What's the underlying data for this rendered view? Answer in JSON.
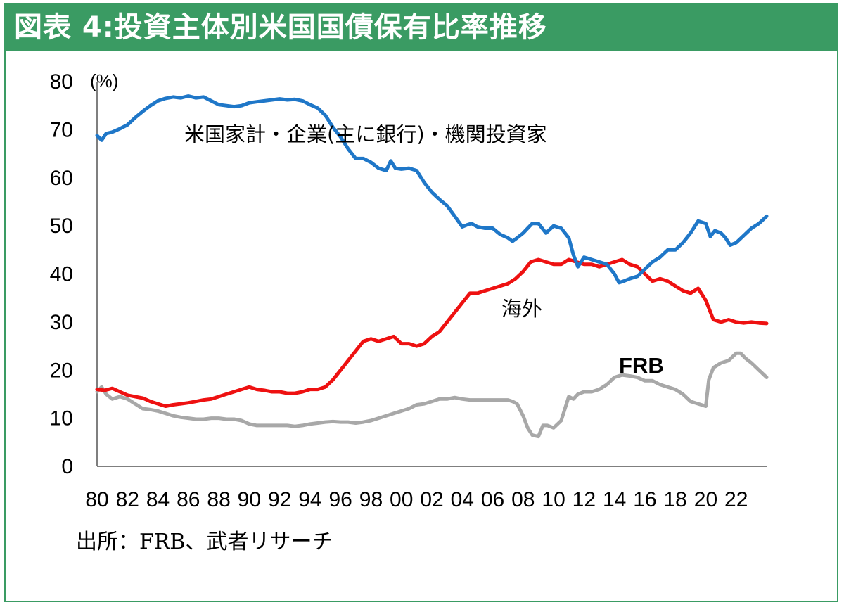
{
  "title": "図表 4:投資主体別米国国債保有比率推移",
  "source": "出所：FRB、武者リサーチ",
  "chart_data": {
    "type": "line",
    "unit": "(%)",
    "ylim": [
      0,
      80
    ],
    "yticks": [
      0,
      10,
      20,
      30,
      40,
      50,
      60,
      70,
      80
    ],
    "xlim": [
      1980,
      2024
    ],
    "xtick_labels": [
      "80",
      "82",
      "84",
      "86",
      "88",
      "90",
      "92",
      "94",
      "96",
      "98",
      "00",
      "02",
      "04",
      "06",
      "08",
      "10",
      "12",
      "14",
      "16",
      "18",
      "20",
      "22"
    ],
    "series": [
      {
        "name": "米国家計・企業(主に銀行)・機関投資家",
        "color": "#1f77c8",
        "x": [
          1980.0,
          1980.3,
          1980.6,
          1981.0,
          1981.5,
          1982.0,
          1982.5,
          1983.0,
          1983.5,
          1984.0,
          1984.5,
          1985.0,
          1985.5,
          1986.0,
          1986.5,
          1987.0,
          1987.5,
          1988.0,
          1988.5,
          1989.0,
          1989.5,
          1990.0,
          1990.5,
          1991.0,
          1991.5,
          1992.0,
          1992.5,
          1993.0,
          1993.5,
          1994.0,
          1994.5,
          1995.0,
          1995.5,
          1996.0,
          1996.5,
          1997.0,
          1997.5,
          1998.0,
          1998.5,
          1999.0,
          1999.3,
          1999.6,
          2000.0,
          2000.5,
          2001.0,
          2001.5,
          2002.0,
          2002.5,
          2003.0,
          2003.5,
          2004.0,
          2004.3,
          2004.6,
          2005.0,
          2005.5,
          2006.0,
          2006.5,
          2007.0,
          2007.3,
          2007.6,
          2008.0,
          2008.3,
          2008.6,
          2009.0,
          2009.5,
          2010.0,
          2010.5,
          2011.0,
          2011.3,
          2011.6,
          2012.0,
          2012.5,
          2013.0,
          2013.5,
          2014.0,
          2014.3,
          2014.6,
          2015.0,
          2015.5,
          2016.0,
          2016.5,
          2017.0,
          2017.5,
          2018.0,
          2018.5,
          2019.0,
          2019.5,
          2020.0,
          2020.3,
          2020.6,
          2021.0,
          2021.3,
          2021.6,
          2022.0,
          2022.5,
          2023.0,
          2023.5,
          2024.0
        ],
        "values": [
          68.8,
          67.8,
          69.2,
          69.5,
          70.2,
          71.0,
          72.5,
          73.8,
          75.0,
          76.0,
          76.5,
          76.8,
          76.6,
          77.0,
          76.6,
          76.8,
          76.0,
          75.2,
          75.0,
          74.8,
          75.0,
          75.6,
          75.8,
          76.0,
          76.2,
          76.4,
          76.2,
          76.3,
          76.0,
          75.2,
          74.5,
          73.0,
          70.5,
          68.5,
          66.0,
          64.0,
          64.0,
          63.2,
          62.0,
          61.5,
          63.5,
          62.0,
          61.8,
          62.0,
          61.5,
          59.0,
          57.0,
          55.5,
          54.2,
          52.0,
          49.8,
          50.2,
          50.5,
          49.8,
          49.5,
          49.5,
          48.2,
          47.5,
          46.8,
          47.5,
          48.5,
          49.5,
          50.5,
          50.5,
          48.5,
          50.0,
          49.5,
          47.5,
          44.0,
          41.5,
          43.5,
          43.0,
          42.5,
          42.0,
          40.0,
          38.2,
          38.5,
          39.0,
          39.5,
          41.0,
          42.5,
          43.5,
          45.0,
          45.0,
          46.5,
          48.5,
          51.0,
          50.5,
          47.8,
          49.0,
          48.5,
          47.5,
          46.0,
          46.5,
          48.0,
          49.5,
          50.5,
          52.0
        ]
      },
      {
        "name": "海外",
        "color": "#ee1111",
        "x": [
          1980.0,
          1980.5,
          1981.0,
          1981.5,
          1982.0,
          1982.5,
          1983.0,
          1983.5,
          1984.0,
          1984.5,
          1985.0,
          1985.5,
          1986.0,
          1986.5,
          1987.0,
          1987.5,
          1988.0,
          1988.5,
          1989.0,
          1989.5,
          1990.0,
          1990.5,
          1991.0,
          1991.5,
          1992.0,
          1992.5,
          1993.0,
          1993.5,
          1994.0,
          1994.5,
          1995.0,
          1995.5,
          1996.0,
          1996.5,
          1997.0,
          1997.5,
          1998.0,
          1998.5,
          1999.0,
          1999.5,
          2000.0,
          2000.5,
          2001.0,
          2001.5,
          2002.0,
          2002.5,
          2003.0,
          2003.5,
          2004.0,
          2004.5,
          2005.0,
          2005.5,
          2006.0,
          2006.5,
          2007.0,
          2007.5,
          2008.0,
          2008.5,
          2009.0,
          2009.5,
          2010.0,
          2010.5,
          2011.0,
          2011.5,
          2012.0,
          2012.5,
          2013.0,
          2013.5,
          2014.0,
          2014.5,
          2015.0,
          2015.5,
          2016.0,
          2016.5,
          2017.0,
          2017.5,
          2018.0,
          2018.5,
          2019.0,
          2019.5,
          2020.0,
          2020.5,
          2021.0,
          2021.5,
          2022.0,
          2022.5,
          2023.0,
          2023.5,
          2024.0
        ],
        "values": [
          16.0,
          15.8,
          16.2,
          15.5,
          14.8,
          14.5,
          14.2,
          13.5,
          13.0,
          12.5,
          12.8,
          13.0,
          13.2,
          13.5,
          13.8,
          14.0,
          14.5,
          15.0,
          15.5,
          16.0,
          16.5,
          16.0,
          15.8,
          15.5,
          15.5,
          15.2,
          15.2,
          15.5,
          16.0,
          16.0,
          16.5,
          18.0,
          20.0,
          22.0,
          24.0,
          26.0,
          26.5,
          26.0,
          26.5,
          27.0,
          25.5,
          25.5,
          25.0,
          25.5,
          27.0,
          28.0,
          30.0,
          32.0,
          34.0,
          36.0,
          36.0,
          36.5,
          37.0,
          37.5,
          38.0,
          39.0,
          40.5,
          42.5,
          43.0,
          42.5,
          42.0,
          42.0,
          43.0,
          42.5,
          42.0,
          42.0,
          41.5,
          42.0,
          42.5,
          43.0,
          42.0,
          41.5,
          40.0,
          38.5,
          39.0,
          38.5,
          37.5,
          36.5,
          36.0,
          37.0,
          34.5,
          30.5,
          30.0,
          30.5,
          30.0,
          29.8,
          30.0,
          29.8,
          29.7
        ]
      },
      {
        "name": "FRB",
        "color": "#a8a8a8",
        "x": [
          1980.0,
          1980.3,
          1980.6,
          1981.0,
          1981.5,
          1982.0,
          1982.5,
          1983.0,
          1983.5,
          1984.0,
          1984.5,
          1985.0,
          1985.5,
          1986.0,
          1986.5,
          1987.0,
          1987.5,
          1988.0,
          1988.5,
          1989.0,
          1989.5,
          1990.0,
          1990.5,
          1991.0,
          1991.5,
          1992.0,
          1992.5,
          1993.0,
          1993.5,
          1994.0,
          1994.5,
          1995.0,
          1995.5,
          1996.0,
          1996.5,
          1997.0,
          1997.5,
          1998.0,
          1998.5,
          1999.0,
          1999.5,
          2000.0,
          2000.5,
          2001.0,
          2001.5,
          2002.0,
          2002.5,
          2003.0,
          2003.5,
          2004.0,
          2004.5,
          2005.0,
          2005.5,
          2006.0,
          2006.5,
          2007.0,
          2007.3,
          2007.6,
          2008.0,
          2008.3,
          2008.6,
          2009.0,
          2009.3,
          2009.6,
          2010.0,
          2010.5,
          2011.0,
          2011.3,
          2011.6,
          2012.0,
          2012.5,
          2013.0,
          2013.5,
          2014.0,
          2014.5,
          2015.0,
          2015.5,
          2016.0,
          2016.5,
          2017.0,
          2017.5,
          2018.0,
          2018.5,
          2019.0,
          2019.5,
          2020.0,
          2020.2,
          2020.5,
          2021.0,
          2021.5,
          2022.0,
          2022.3,
          2022.6,
          2023.0,
          2023.5,
          2024.0
        ],
        "values": [
          15.5,
          16.5,
          15.0,
          14.0,
          14.5,
          14.0,
          13.0,
          12.0,
          11.8,
          11.5,
          11.0,
          10.5,
          10.2,
          10.0,
          9.8,
          9.8,
          10.0,
          10.0,
          9.8,
          9.8,
          9.5,
          8.8,
          8.5,
          8.5,
          8.5,
          8.5,
          8.5,
          8.3,
          8.5,
          8.8,
          9.0,
          9.2,
          9.3,
          9.2,
          9.2,
          9.0,
          9.2,
          9.5,
          10.0,
          10.5,
          11.0,
          11.5,
          12.0,
          12.8,
          13.0,
          13.5,
          14.0,
          14.0,
          14.3,
          14.0,
          13.8,
          13.8,
          13.8,
          13.8,
          13.8,
          13.8,
          13.5,
          13.0,
          10.5,
          8.0,
          6.5,
          6.2,
          8.5,
          8.5,
          8.0,
          9.5,
          14.5,
          14.0,
          15.0,
          15.5,
          15.5,
          16.0,
          17.0,
          18.5,
          19.0,
          18.8,
          18.5,
          17.8,
          17.8,
          17.0,
          16.5,
          16.0,
          15.0,
          13.5,
          13.0,
          12.5,
          18.0,
          20.5,
          21.5,
          22.0,
          23.5,
          23.5,
          22.5,
          21.5,
          20.0,
          18.5
        ]
      }
    ],
    "annotations": [
      {
        "text": "米国家計・企業(主に銀行)・機関投資家",
        "series": 0
      },
      {
        "text": "海外",
        "series": 1
      },
      {
        "text": "FRB",
        "series": 2
      }
    ]
  }
}
